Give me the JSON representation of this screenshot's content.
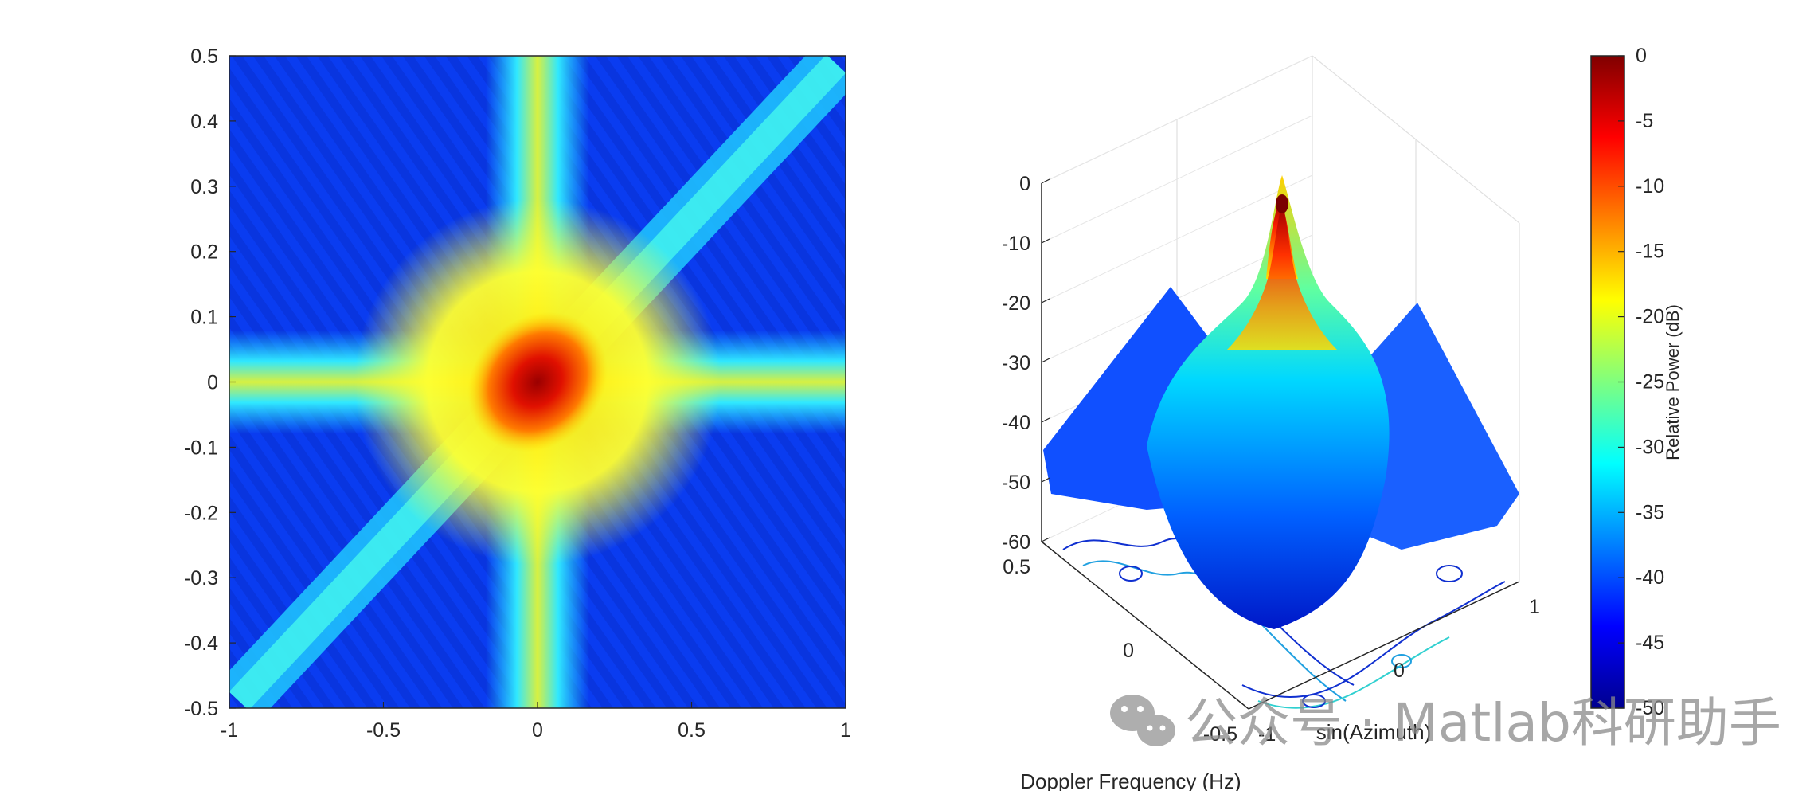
{
  "chart_data": [
    {
      "type": "heatmap",
      "title": "",
      "xlabel": "",
      "ylabel": "",
      "xlim": [
        -1,
        1
      ],
      "ylim": [
        -0.5,
        0.5
      ],
      "x_ticks": [
        "-1",
        "-0.5",
        "0",
        "0.5",
        "1"
      ],
      "y_ticks": [
        "0.5",
        "0.4",
        "0.3",
        "0.2",
        "0.1",
        "0",
        "-0.1",
        "-0.2",
        "-0.3",
        "-0.4",
        "-0.5"
      ],
      "colormap": "jet",
      "clim": [
        -50,
        0
      ],
      "peak": {
        "x": 0,
        "y": 0,
        "value": 0
      },
      "ridges": [
        "horizontal at y=0",
        "vertical at x=0",
        "diagonal from (-1,-0.5) to (1,0.5)"
      ],
      "grid": false
    },
    {
      "type": "surface",
      "title": "",
      "xlabel": "sin(Azimuth)",
      "ylabel": "Doppler Frequency (Hz)",
      "zlabel": "",
      "xlim": [
        -1,
        1
      ],
      "ylim": [
        -0.5,
        0.5
      ],
      "zlim": [
        -60,
        0
      ],
      "x_ticks": [
        "-1",
        "0",
        "1"
      ],
      "y_ticks": [
        "0.5",
        "0",
        "-0.5"
      ],
      "z_ticks": [
        "0",
        "-10",
        "-20",
        "-30",
        "-40",
        "-50",
        "-60"
      ],
      "peak": {
        "x": 0,
        "y": 0,
        "value": 0
      },
      "contour_on_floor": true,
      "grid": true,
      "colorbar": {
        "label": "Relative Power (dB)",
        "ticks": [
          "0",
          "-5",
          "-10",
          "-15",
          "-20",
          "-25",
          "-30",
          "-35",
          "-40",
          "-45",
          "-50"
        ],
        "range": [
          -50,
          0
        ],
        "colormap": "jet",
        "position": "right"
      }
    }
  ],
  "watermark": "公众号 · Matlab科研助手"
}
